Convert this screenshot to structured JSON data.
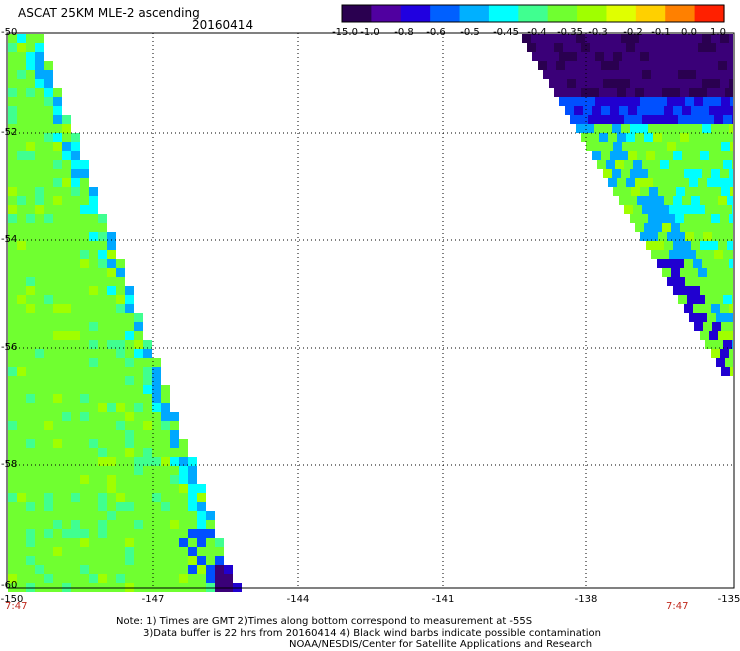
{
  "header": {
    "title": "ASCAT 25KM MLE-2 ascending",
    "date": "20160414"
  },
  "colorbar": {
    "labels": [
      "-15.0",
      "-1.0",
      "-0.8",
      "-0.6",
      "-0.5",
      "-0.45",
      "-0.4",
      "-0.35",
      "-0.3",
      "-0.2",
      "-0.1",
      "0.0",
      "1.0"
    ],
    "colors": [
      "#2a0050",
      "#5000a0",
      "#2000e0",
      "#0060ff",
      "#00b0ff",
      "#00ffff",
      "#40ff90",
      "#70ff30",
      "#a0ff00",
      "#e0ff00",
      "#ffd000",
      "#ff8000",
      "#ff2000"
    ]
  },
  "map": {
    "lat_labels": [
      "-50",
      "-52",
      "-54",
      "-56",
      "-58",
      "-60"
    ],
    "lon_labels": [
      "-150",
      "-147",
      "-144",
      "-141",
      "-138",
      "-135"
    ],
    "time_left": "7:47",
    "time_right": "7:47"
  },
  "notes": {
    "line1": "Note: 1) Times are GMT 2)Times along bottom correspond to measurement at -55S",
    "line2": "3)Data buffer is 22 hrs from 20160414 4) Black wind barbs indicate possible contamination",
    "line3": "NOAA/NESDIS/Center for Satellite Applications and Research"
  }
}
